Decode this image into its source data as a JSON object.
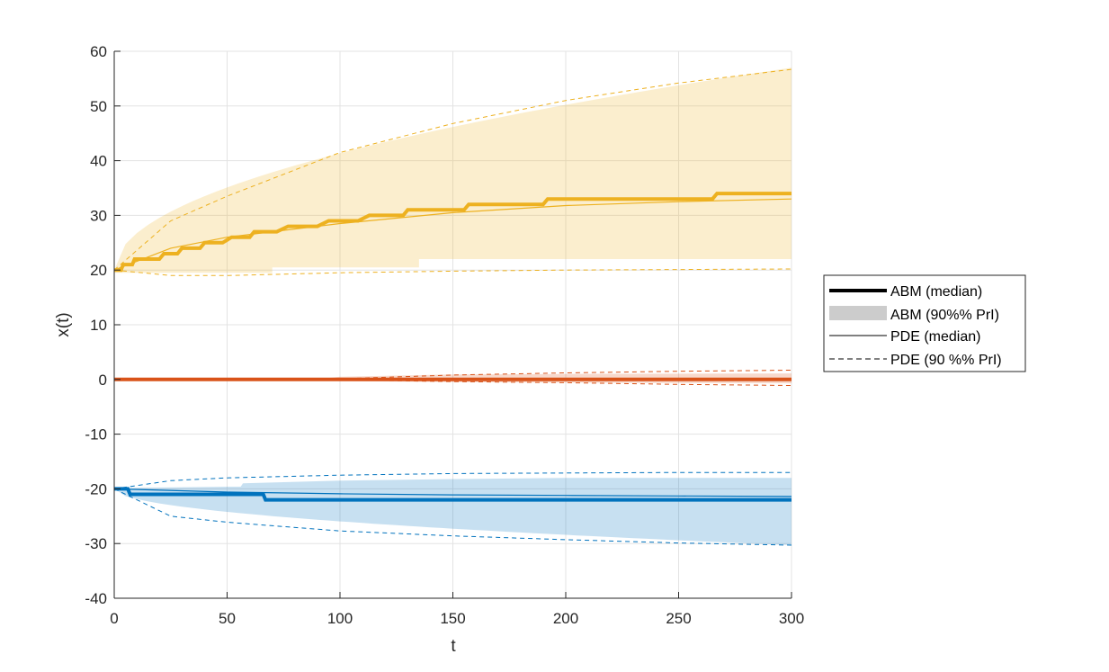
{
  "chart_data": {
    "type": "line",
    "title": "",
    "xlabel": "t",
    "ylabel": "x(t)",
    "xlim": [
      0,
      300
    ],
    "ylim": [
      -40,
      60
    ],
    "x_ticks": [
      0,
      50,
      100,
      150,
      200,
      250,
      300
    ],
    "x_tick_labels": [
      "0",
      "50",
      "100",
      "150",
      "200",
      "250",
      "300"
    ],
    "y_ticks": [
      -40,
      -30,
      -20,
      -10,
      0,
      10,
      20,
      30,
      40,
      50,
      60
    ],
    "y_tick_labels": [
      "-40",
      "-30",
      "-20",
      "-10",
      "0",
      "10",
      "20",
      "30",
      "40",
      "50",
      "60"
    ],
    "grid": true,
    "legend_position": "right",
    "legend": [
      {
        "label": "ABM (median)",
        "style": "thick-line"
      },
      {
        "label": "ABM (90%% PrI)",
        "style": "band"
      },
      {
        "label": "PDE (median)",
        "style": "thin-line"
      },
      {
        "label": "PDE (90 %% PrI)",
        "style": "dashed-line"
      }
    ],
    "groups": [
      {
        "color": "#EDB120",
        "abm_median": {
          "x": [
            0,
            3,
            4,
            8,
            9,
            14,
            16,
            20,
            22,
            28,
            30,
            38,
            40,
            48,
            52,
            60,
            62,
            72,
            77,
            90,
            95,
            108,
            113,
            128,
            130,
            155,
            157,
            190,
            192,
            265,
            267,
            300
          ],
          "y": [
            20,
            20,
            21,
            21,
            22,
            22,
            22,
            22,
            23,
            23,
            24,
            24,
            25,
            25,
            26,
            26,
            27,
            27,
            28,
            28,
            29,
            29,
            30,
            30,
            31,
            31,
            32,
            32,
            33,
            33,
            34,
            34
          ]
        },
        "abm_band": {
          "x": [
            0,
            70,
            70,
            135,
            135,
            300
          ],
          "lower": [
            19.5,
            19.5,
            20.5,
            20.5,
            22,
            22
          ],
          "upper_curve": {
            "start": 20,
            "end": 57
          }
        },
        "pde_median": {
          "x": [
            0,
            25,
            50,
            100,
            150,
            200,
            250,
            300
          ],
          "y": [
            20,
            24,
            26,
            28.5,
            30.5,
            31.8,
            32.5,
            33
          ]
        },
        "pde_upper": {
          "x": [
            0,
            25,
            50,
            100,
            150,
            200,
            250,
            300
          ],
          "y": [
            20,
            29,
            33.5,
            41.5,
            46.8,
            51,
            54.2,
            56.7
          ]
        },
        "pde_lower": {
          "x": [
            0,
            25,
            50,
            100,
            150,
            200,
            250,
            300
          ],
          "y": [
            20,
            19,
            19,
            19.5,
            19.8,
            20,
            20.1,
            20.2
          ]
        }
      },
      {
        "color": "#D95319",
        "abm_median": {
          "x": [
            0,
            300
          ],
          "y": [
            0,
            0
          ]
        },
        "abm_band": {
          "x": [
            0,
            90,
            100,
            150,
            200,
            300
          ],
          "lower": [
            0,
            0,
            -0.3,
            -0.5,
            -0.6,
            -0.7
          ],
          "upper": [
            0,
            0,
            0.5,
            0.9,
            1.0,
            1.1
          ]
        },
        "pde_median": {
          "x": [
            0,
            300
          ],
          "y": [
            0,
            0
          ]
        },
        "pde_upper": {
          "x": [
            0,
            90,
            150,
            200,
            250,
            300
          ],
          "y": [
            0,
            0,
            0.8,
            1.2,
            1.5,
            1.7
          ]
        },
        "pde_lower": {
          "x": [
            0,
            90,
            150,
            200,
            250,
            300
          ],
          "y": [
            0,
            0,
            -0.4,
            -0.6,
            -0.9,
            -1.1
          ]
        }
      },
      {
        "color": "#0072BD",
        "abm_median": {
          "x": [
            0,
            6,
            7,
            66,
            67,
            300
          ],
          "y": [
            -20,
            -20,
            -21,
            -21,
            -22,
            -22
          ]
        },
        "abm_band": {
          "x": [
            0,
            10,
            30,
            50,
            56,
            57,
            100,
            150,
            200,
            250,
            300
          ],
          "upper": [
            -20,
            -19.8,
            -19.7,
            -19.6,
            -19.6,
            -19,
            -18.5,
            -18.2,
            -18,
            -18,
            -18
          ],
          "lower_curve": {
            "start": -20,
            "end": -30.3
          }
        },
        "pde_median": {
          "x": [
            0,
            50,
            100,
            150,
            200,
            250,
            300
          ],
          "y": [
            -20,
            -20.6,
            -20.9,
            -21.1,
            -21.2,
            -21.3,
            -21.4
          ]
        },
        "pde_upper": {
          "x": [
            0,
            25,
            50,
            100,
            150,
            200,
            250,
            300
          ],
          "y": [
            -20,
            -18.5,
            -18,
            -17.5,
            -17.2,
            -17.1,
            -17.0,
            -17.0
          ]
        },
        "pde_lower": {
          "x": [
            0,
            25,
            50,
            100,
            150,
            200,
            250,
            300
          ],
          "y": [
            -20,
            -25,
            -26.1,
            -27.7,
            -28.6,
            -29.3,
            -29.9,
            -30.3
          ]
        }
      }
    ]
  }
}
